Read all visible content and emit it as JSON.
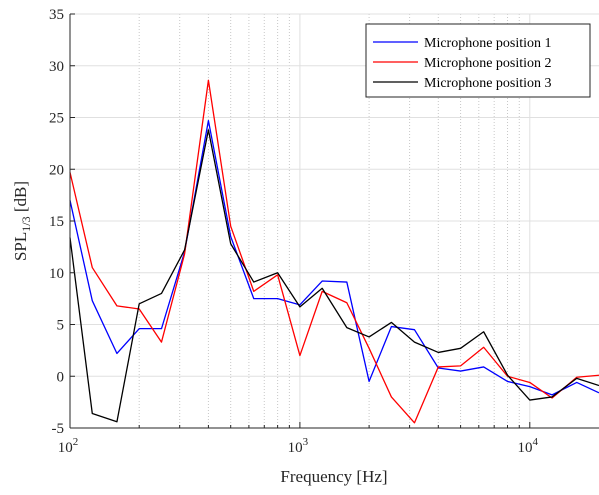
{
  "chart_data": {
    "type": "line",
    "xscale": "log",
    "xlabel": "Frequency [Hz]",
    "ylabel": {
      "main": "SPL",
      "sub": "1/3",
      "unit": " [dB]"
    },
    "xlim": [
      100,
      20000
    ],
    "ylim": [
      -5,
      35
    ],
    "yticks": [
      -5,
      0,
      5,
      10,
      15,
      20,
      25,
      30,
      35
    ],
    "xticks": [
      {
        "value": 100,
        "base": "10",
        "exp": "2"
      },
      {
        "value": 1000,
        "base": "10",
        "exp": "3"
      },
      {
        "value": 10000,
        "base": "10",
        "exp": "4"
      }
    ],
    "grid": true,
    "legend_position": "top-right",
    "x": [
      100,
      125,
      160,
      200,
      250,
      315,
      400,
      500,
      630,
      800,
      1000,
      1250,
      1600,
      2000,
      2500,
      3150,
      4000,
      5000,
      6300,
      8000,
      10000,
      12500,
      16000,
      20000
    ],
    "series": [
      {
        "name": "Microphone position 1",
        "color": "#0000ff",
        "values": [
          17.0,
          7.3,
          2.2,
          4.6,
          4.6,
          12.0,
          24.7,
          13.5,
          7.5,
          7.5,
          6.9,
          9.2,
          9.1,
          -0.5,
          4.8,
          4.5,
          0.8,
          0.5,
          0.9,
          -0.5,
          -1.0,
          -1.8,
          -0.6,
          -1.6
        ]
      },
      {
        "name": "Microphone position 2",
        "color": "#ff0000",
        "values": [
          19.7,
          10.5,
          6.8,
          6.5,
          3.3,
          11.8,
          28.6,
          14.5,
          8.2,
          9.8,
          2.0,
          8.2,
          7.1,
          2.7,
          -2.0,
          -4.5,
          0.9,
          1.0,
          2.8,
          0.0,
          -0.6,
          -2.1,
          -0.1,
          0.1
        ]
      },
      {
        "name": "Microphone position 3",
        "color": "#000000",
        "values": [
          13.4,
          -3.6,
          -4.4,
          7.0,
          8.0,
          12.2,
          23.8,
          12.8,
          9.1,
          10.0,
          6.7,
          8.5,
          4.7,
          3.8,
          5.2,
          3.3,
          2.3,
          2.7,
          4.3,
          0.1,
          -2.3,
          -2.0,
          -0.2,
          -0.9
        ]
      }
    ]
  }
}
